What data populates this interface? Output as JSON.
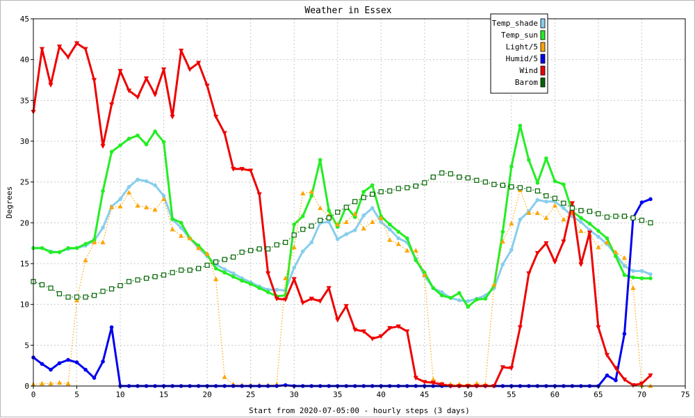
{
  "chart_data": {
    "type": "line",
    "title": "Weather in Essex",
    "xlabel": "Start from 2020-07-05:00 - hourly steps (3 days)",
    "ylabel": "Degrees",
    "xlim": [
      0,
      75
    ],
    "ylim": [
      0,
      45
    ],
    "xticks": [
      0,
      5,
      10,
      15,
      20,
      25,
      30,
      35,
      40,
      45,
      50,
      55,
      60,
      65,
      70,
      75
    ],
    "yticks": [
      0,
      5,
      10,
      15,
      20,
      25,
      30,
      35,
      40,
      45
    ],
    "grid": true,
    "legend_position": "top-right",
    "x": [
      0,
      1,
      2,
      3,
      4,
      5,
      6,
      7,
      8,
      9,
      10,
      11,
      12,
      13,
      14,
      15,
      16,
      17,
      18,
      19,
      20,
      21,
      22,
      23,
      24,
      25,
      26,
      27,
      28,
      29,
      30,
      31,
      32,
      33,
      34,
      35,
      36,
      37,
      38,
      39,
      40,
      41,
      42,
      43,
      44,
      45,
      46,
      47,
      48,
      49,
      50,
      51,
      52,
      53,
      54,
      55,
      56,
      57,
      58,
      59,
      60,
      61,
      62,
      63,
      64,
      65,
      66,
      67,
      68,
      69,
      70,
      71
    ],
    "series": [
      {
        "name": "Temp_shade",
        "color": "#87ceeb",
        "style": "solid",
        "marker": "circle",
        "values": [
          16.9,
          16.9,
          16.5,
          16.4,
          16.8,
          16.9,
          17.2,
          17.8,
          19.4,
          22.0,
          22.9,
          24.4,
          25.3,
          25.1,
          24.6,
          23.3,
          20.4,
          19.4,
          18.1,
          16.9,
          15.9,
          14.9,
          14.3,
          13.8,
          13.2,
          12.7,
          12.2,
          11.8,
          11.8,
          11.7,
          14.5,
          16.5,
          17.6,
          20.0,
          20.1,
          18.0,
          18.6,
          19.1,
          20.9,
          21.8,
          20.1,
          19.2,
          18.1,
          17.6,
          15.6,
          13.5,
          12.0,
          11.5,
          10.8,
          10.5,
          10.4,
          10.7,
          11.1,
          12.0,
          14.9,
          16.7,
          20.4,
          21.4,
          22.8,
          22.6,
          22.6,
          21.8,
          20.8,
          20.1,
          19.1,
          18.3,
          17.4,
          16.1,
          14.7,
          14.1,
          14.1,
          13.7
        ]
      },
      {
        "name": "Temp_sun",
        "color": "#22ee22",
        "style": "solid",
        "marker": "circle",
        "values": [
          16.9,
          16.9,
          16.4,
          16.4,
          16.9,
          16.9,
          17.4,
          17.9,
          23.9,
          28.7,
          29.5,
          30.3,
          30.7,
          29.6,
          31.2,
          29.9,
          20.5,
          20.0,
          18.1,
          17.2,
          16.1,
          14.4,
          13.9,
          13.4,
          12.9,
          12.5,
          12.0,
          11.5,
          11.0,
          11.1,
          19.8,
          20.8,
          23.3,
          27.7,
          21.5,
          19.5,
          22.0,
          20.7,
          23.8,
          24.6,
          20.8,
          19.8,
          18.9,
          18.1,
          15.4,
          13.9,
          12.0,
          11.1,
          10.8,
          11.4,
          9.7,
          10.6,
          10.7,
          12.3,
          18.9,
          26.9,
          31.9,
          27.7,
          24.9,
          27.9,
          25.1,
          24.7,
          21.4,
          20.6,
          19.9,
          19.0,
          18.1,
          15.9,
          13.6,
          13.3,
          13.2,
          13.2
        ]
      },
      {
        "name": "Light/5",
        "color": "#ffa500",
        "style": "dotted",
        "marker": "triangle",
        "values": [
          0.2,
          0.3,
          0.3,
          0.4,
          0.3,
          10.5,
          15.4,
          17.6,
          17.6,
          21.9,
          22.0,
          23.7,
          22.1,
          21.9,
          21.6,
          22.9,
          19.2,
          18.4,
          18.1,
          16.9,
          16.2,
          13.1,
          1.1,
          0.2,
          0.1,
          0.1,
          0.1,
          0.1,
          0.2,
          13.2,
          17.0,
          23.6,
          23.8,
          21.8,
          20.9,
          19.8,
          20.1,
          21.1,
          19.3,
          20.1,
          20.6,
          17.9,
          17.4,
          16.6,
          16.6,
          13.6,
          0.8,
          0.3,
          0.2,
          0.2,
          0.1,
          0.3,
          0.2,
          12.4,
          17.7,
          19.9,
          24.0,
          21.2,
          21.2,
          20.6,
          22.1,
          20.4,
          21.2,
          19.0,
          18.6,
          17.0,
          17.6,
          16.4,
          15.7,
          12.0,
          0.1,
          0.0
        ]
      },
      {
        "name": "Humid/5",
        "color": "#0000ee",
        "style": "solid",
        "marker": "circle",
        "values": [
          3.5,
          2.7,
          2.0,
          2.8,
          3.2,
          2.9,
          2.0,
          1.0,
          3.0,
          7.2,
          0.0,
          0.0,
          0.0,
          0.0,
          0.0,
          0.0,
          0.0,
          0.0,
          0.0,
          0.0,
          0.0,
          0.0,
          0.0,
          0.0,
          0.0,
          0.0,
          0.0,
          0.0,
          0.0,
          0.1,
          0.0,
          0.0,
          0.0,
          0.0,
          0.0,
          0.0,
          0.0,
          0.0,
          0.0,
          0.0,
          0.0,
          0.0,
          0.0,
          0.0,
          0.0,
          0.0,
          0.0,
          0.0,
          0.0,
          0.0,
          0.0,
          0.0,
          0.0,
          0.0,
          0.0,
          0.0,
          0.0,
          0.0,
          0.0,
          0.0,
          0.0,
          0.0,
          0.0,
          0.0,
          0.0,
          0.0,
          1.3,
          0.7,
          6.4,
          20.6,
          22.5,
          22.9
        ]
      },
      {
        "name": "Wind",
        "color": "#ee0000",
        "style": "solid",
        "marker": "triangle-down",
        "values": [
          33.6,
          41.3,
          36.9,
          41.6,
          40.3,
          42.0,
          41.3,
          37.5,
          29.4,
          34.5,
          38.6,
          36.2,
          35.4,
          37.7,
          35.7,
          38.8,
          33.0,
          41.1,
          38.8,
          39.6,
          36.8,
          33.0,
          31.0,
          26.6,
          26.6,
          26.4,
          23.5,
          13.8,
          10.7,
          10.6,
          13.1,
          10.2,
          10.7,
          10.4,
          12.0,
          8.1,
          9.8,
          6.9,
          6.7,
          5.8,
          6.1,
          7.1,
          7.3,
          6.7,
          1.0,
          0.5,
          0.4,
          0.2,
          0.0,
          0.0,
          0.0,
          0.0,
          0.0,
          0.0,
          2.3,
          2.2,
          7.2,
          13.8,
          16.3,
          17.5,
          15.2,
          17.7,
          22.4,
          14.9,
          18.8,
          7.2,
          3.8,
          2.2,
          0.8,
          0.1,
          0.3,
          1.3
        ]
      },
      {
        "name": "Barom",
        "color": "#006400",
        "style": "dotted",
        "marker": "square",
        "values": [
          12.8,
          12.4,
          12.0,
          11.3,
          10.9,
          10.9,
          10.9,
          11.1,
          11.6,
          11.9,
          12.3,
          12.8,
          13.0,
          13.2,
          13.4,
          13.6,
          13.9,
          14.2,
          14.2,
          14.4,
          14.8,
          15.2,
          15.5,
          15.8,
          16.4,
          16.6,
          16.8,
          16.8,
          17.3,
          17.6,
          18.5,
          19.2,
          19.6,
          20.3,
          20.6,
          21.3,
          21.9,
          22.6,
          23.1,
          23.5,
          23.8,
          23.9,
          24.2,
          24.3,
          24.5,
          24.9,
          25.6,
          26.1,
          26.0,
          25.6,
          25.5,
          25.2,
          25.0,
          24.7,
          24.6,
          24.4,
          24.3,
          24.1,
          23.9,
          23.3,
          23.0,
          22.4,
          21.8,
          21.5,
          21.4,
          21.1,
          20.7,
          20.8,
          20.8,
          20.6,
          20.3,
          20.0
        ]
      }
    ]
  }
}
